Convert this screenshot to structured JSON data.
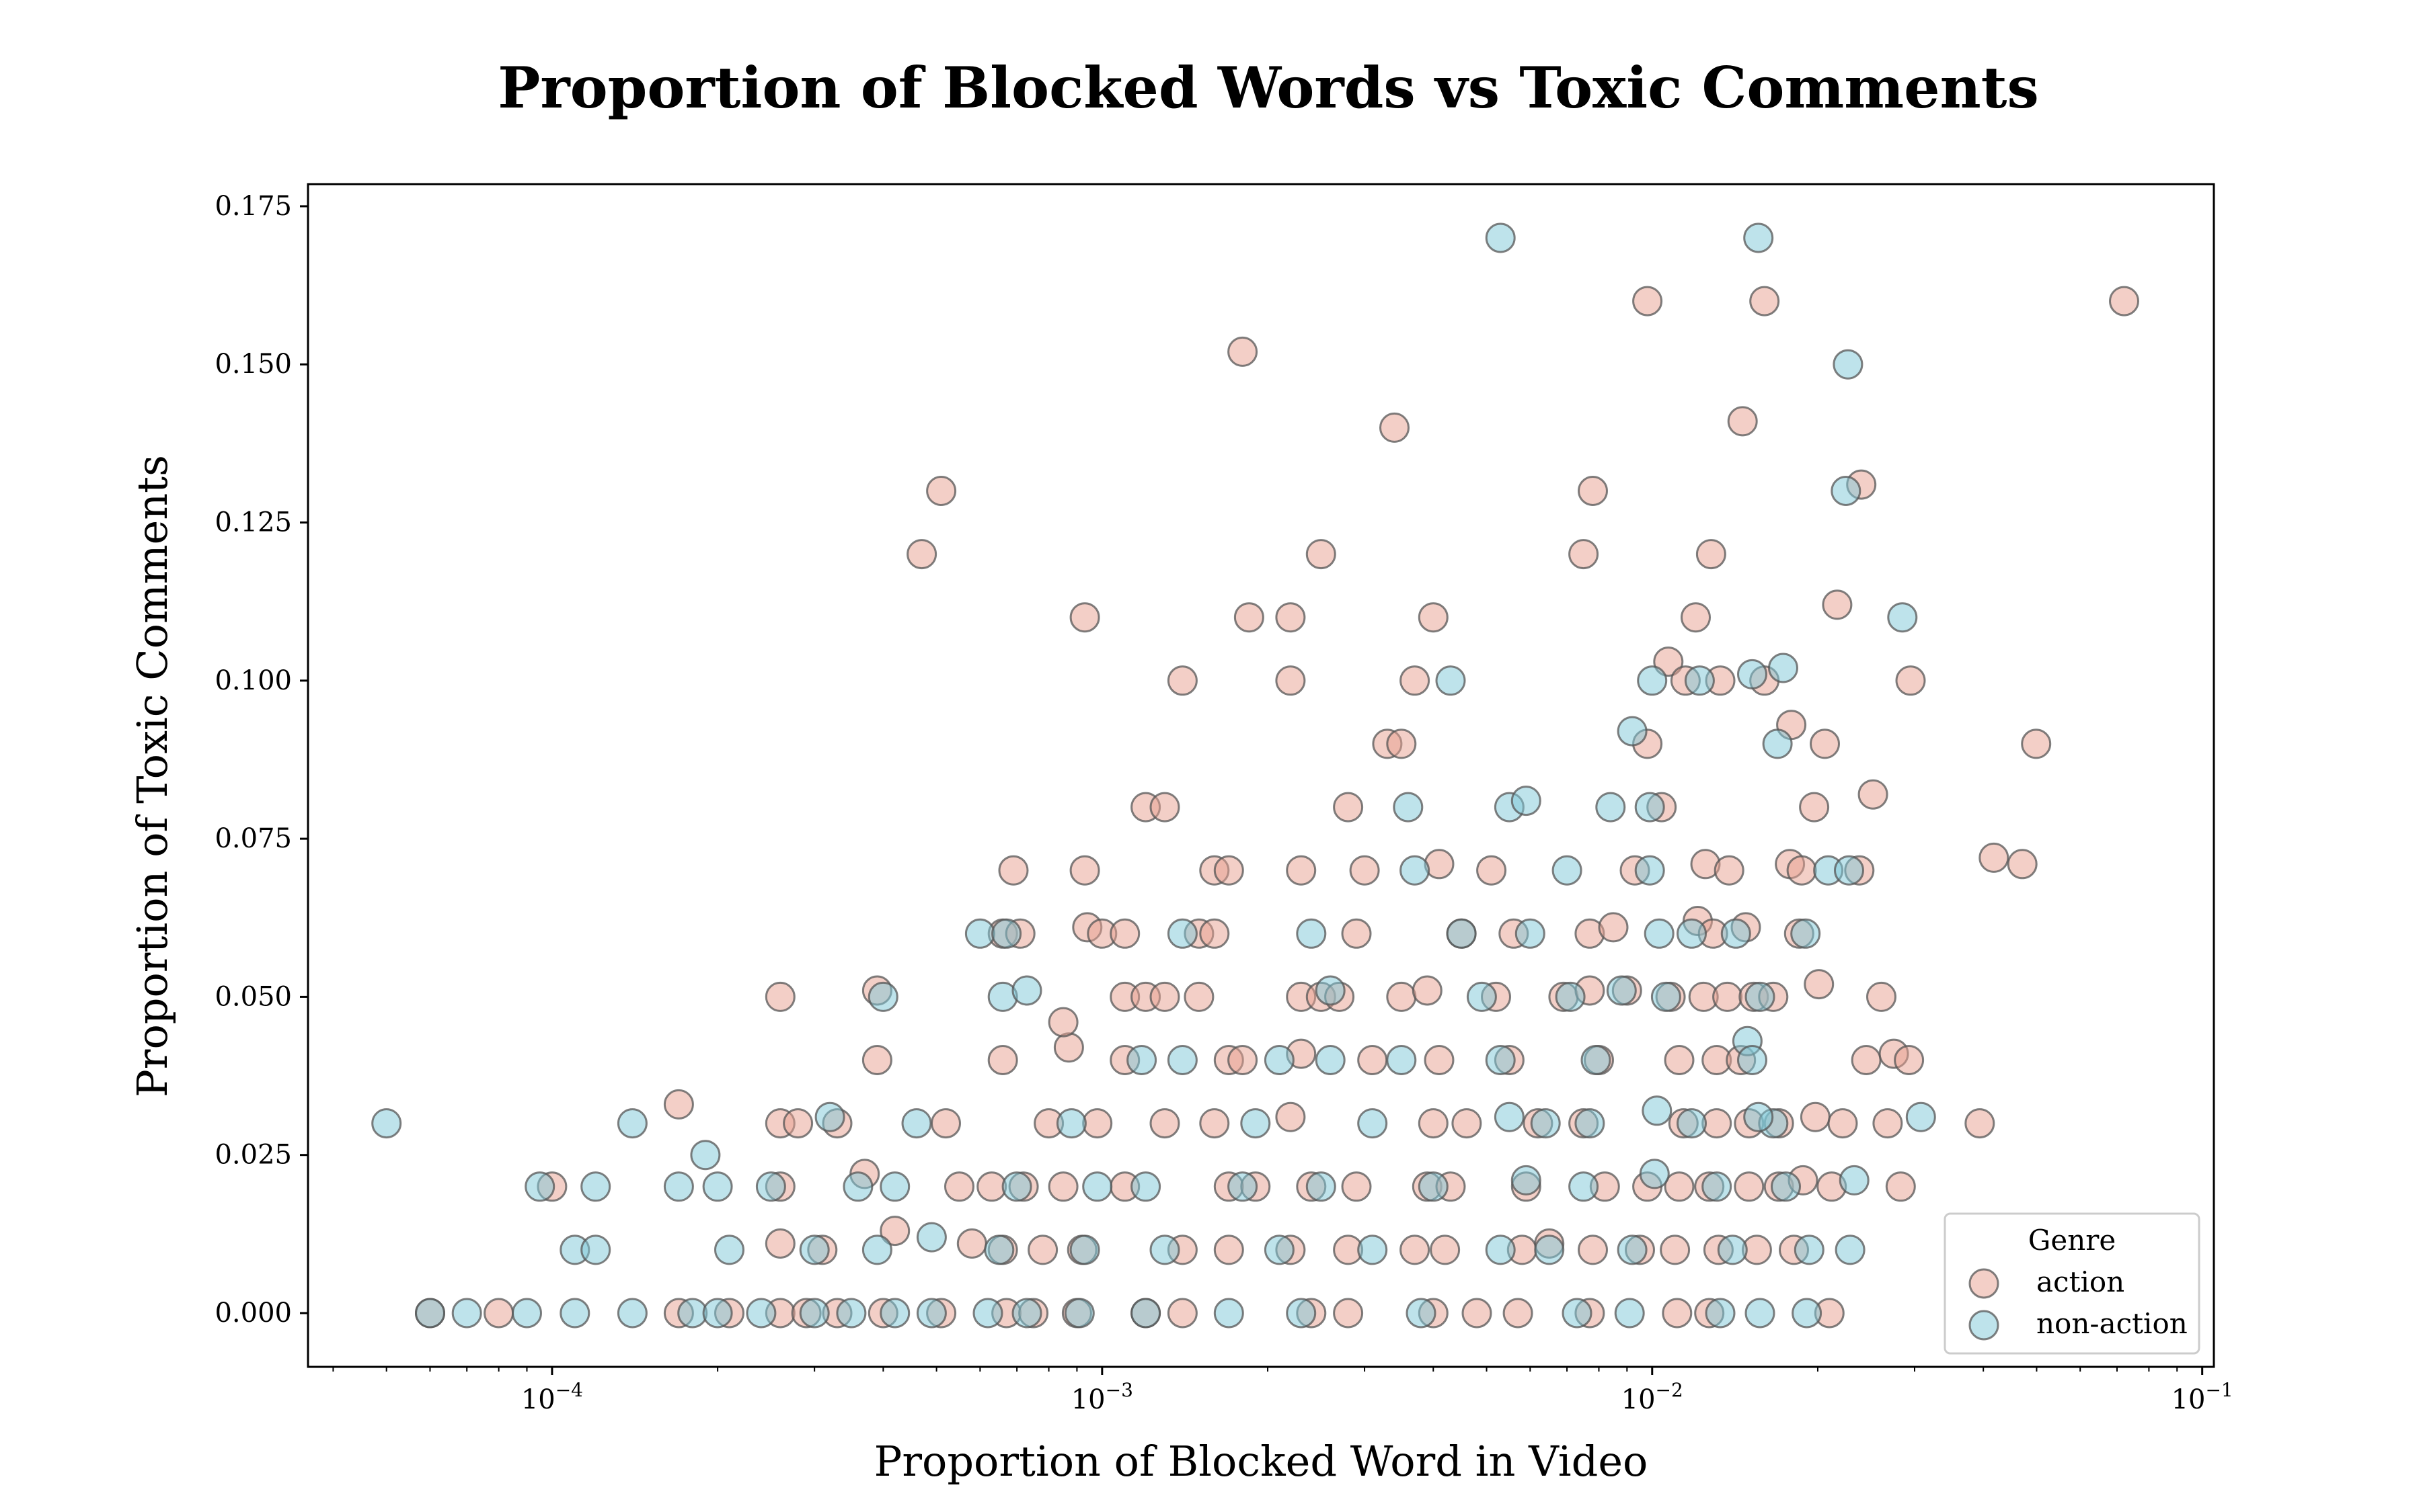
{
  "chart_data": {
    "type": "scatter",
    "title": "Proportion of Blocked Words vs Toxic Comments",
    "xlabel": "Proportion of Blocked Word in Video",
    "ylabel": "Proportion of Toxic Comments",
    "x_scale": "log",
    "xlim": [
      3.6e-05,
      0.105
    ],
    "ylim": [
      -0.0085,
      0.1785
    ],
    "x_ticks": [
      {
        "value": 0.0001,
        "base": "10",
        "exp": "−4"
      },
      {
        "value": 0.001,
        "base": "10",
        "exp": "−3"
      },
      {
        "value": 0.01,
        "base": "10",
        "exp": "−2"
      },
      {
        "value": 0.1,
        "base": "10",
        "exp": "−1"
      }
    ],
    "y_ticks": [
      {
        "value": 0,
        "label": "0.000"
      },
      {
        "value": 0.025,
        "label": "0.025"
      },
      {
        "value": 0.05,
        "label": "0.050"
      },
      {
        "value": 0.075,
        "label": "0.075"
      },
      {
        "value": 0.1,
        "label": "0.100"
      },
      {
        "value": 0.125,
        "label": "0.125"
      },
      {
        "value": 0.15,
        "label": "0.150"
      },
      {
        "value": 0.175,
        "label": "0.175"
      }
    ],
    "grid": false,
    "legend": {
      "title": "Genre",
      "position": "lower-right"
    },
    "colors": {
      "action": "#e8a090",
      "non-action": "#7ec8d8",
      "edge": "#555555"
    },
    "series": [
      {
        "name": "action",
        "x": [
          0.0721,
          0.0098,
          0.016,
          0.0018,
          0.0034,
          0.0146,
          0.024,
          0.0078,
          0.00051,
          0.00047,
          0.0025,
          0.0075,
          0.0128,
          0.0217,
          0.00093,
          0.00185,
          0.0022,
          0.004,
          0.012,
          0.0107,
          0.0014,
          0.0022,
          0.0037,
          0.0115,
          0.0133,
          0.016,
          0.0295,
          0.0179,
          0.0033,
          0.0035,
          0.0098,
          0.0206,
          0.0499,
          0.0252,
          0.0012,
          0.0013,
          0.0028,
          0.0104,
          0.0197,
          0.00069,
          0.00093,
          0.0016,
          0.0017,
          0.0023,
          0.003,
          0.0041,
          0.0051,
          0.0093,
          0.0125,
          0.0138,
          0.0178,
          0.0187,
          0.0238,
          0.0418,
          0.0471,
          0.00066,
          0.00071,
          0.00094,
          0.001,
          0.0011,
          0.0015,
          0.0016,
          0.0029,
          0.0045,
          0.0056,
          0.0077,
          0.0085,
          0.0121,
          0.0129,
          0.0148,
          0.0185,
          0.00026,
          0.00039,
          0.00087,
          0.0011,
          0.0012,
          0.0013,
          0.0015,
          0.0023,
          0.0025,
          0.0027,
          0.0035,
          0.0039,
          0.0052,
          0.0069,
          0.0077,
          0.009,
          0.0108,
          0.0124,
          0.0137,
          0.0153,
          0.0166,
          0.0201,
          0.0261,
          0.00039,
          0.00066,
          0.00085,
          0.0011,
          0.0017,
          0.0018,
          0.0023,
          0.0031,
          0.0041,
          0.0055,
          0.008,
          0.0112,
          0.0131,
          0.0145,
          0.0245,
          0.0275,
          0.0293,
          0.00017,
          0.00026,
          0.00028,
          0.00033,
          0.00052,
          0.0008,
          0.00098,
          0.0013,
          0.0016,
          0.0022,
          0.004,
          0.0046,
          0.0062,
          0.0075,
          0.0114,
          0.0131,
          0.015,
          0.017,
          0.0198,
          0.0222,
          0.0268,
          0.0394,
          0.0001,
          0.00026,
          0.00037,
          0.00055,
          0.00063,
          0.00072,
          0.00085,
          0.0011,
          0.0017,
          0.0019,
          0.0024,
          0.0029,
          0.0039,
          0.0043,
          0.0059,
          0.0082,
          0.0098,
          0.0112,
          0.0127,
          0.015,
          0.017,
          0.0188,
          0.0212,
          0.0283,
          0.00026,
          0.00031,
          0.00042,
          0.00058,
          0.00066,
          0.00078,
          0.00092,
          0.0014,
          0.0017,
          0.0022,
          0.0028,
          0.0037,
          0.0042,
          0.0058,
          0.0065,
          0.0078,
          0.0095,
          0.011,
          0.0132,
          0.0155,
          0.0181,
          6e-05,
          8e-05,
          0.00017,
          0.00021,
          0.00026,
          0.00029,
          0.00033,
          0.0004,
          0.00051,
          0.00067,
          0.00075,
          0.0009,
          0.0012,
          0.0014,
          0.0024,
          0.0028,
          0.004,
          0.0048,
          0.0057,
          0.0077,
          0.0111,
          0.0127,
          0.021
        ],
        "y": [
          0.16,
          0.16,
          0.16,
          0.152,
          0.14,
          0.141,
          0.131,
          0.13,
          0.13,
          0.12,
          0.12,
          0.12,
          0.12,
          0.112,
          0.11,
          0.11,
          0.11,
          0.11,
          0.11,
          0.103,
          0.1,
          0.1,
          0.1,
          0.1,
          0.1,
          0.1,
          0.1,
          0.093,
          0.09,
          0.09,
          0.09,
          0.09,
          0.09,
          0.082,
          0.08,
          0.08,
          0.08,
          0.08,
          0.08,
          0.07,
          0.07,
          0.07,
          0.07,
          0.07,
          0.07,
          0.071,
          0.07,
          0.07,
          0.071,
          0.07,
          0.071,
          0.07,
          0.07,
          0.072,
          0.071,
          0.06,
          0.06,
          0.061,
          0.06,
          0.06,
          0.06,
          0.06,
          0.06,
          0.06,
          0.06,
          0.06,
          0.061,
          0.062,
          0.06,
          0.061,
          0.06,
          0.05,
          0.051,
          0.042,
          0.05,
          0.05,
          0.05,
          0.05,
          0.05,
          0.05,
          0.05,
          0.05,
          0.051,
          0.05,
          0.05,
          0.051,
          0.051,
          0.05,
          0.05,
          0.05,
          0.05,
          0.05,
          0.052,
          0.05,
          0.04,
          0.04,
          0.046,
          0.04,
          0.04,
          0.04,
          0.041,
          0.04,
          0.04,
          0.04,
          0.04,
          0.04,
          0.04,
          0.04,
          0.04,
          0.041,
          0.04,
          0.033,
          0.03,
          0.03,
          0.03,
          0.03,
          0.03,
          0.03,
          0.03,
          0.03,
          0.031,
          0.03,
          0.03,
          0.03,
          0.03,
          0.03,
          0.03,
          0.03,
          0.03,
          0.031,
          0.03,
          0.03,
          0.03,
          0.02,
          0.02,
          0.022,
          0.02,
          0.02,
          0.02,
          0.02,
          0.02,
          0.02,
          0.02,
          0.02,
          0.02,
          0.02,
          0.02,
          0.02,
          0.02,
          0.02,
          0.02,
          0.02,
          0.02,
          0.02,
          0.021,
          0.02,
          0.02,
          0.011,
          0.01,
          0.013,
          0.011,
          0.01,
          0.01,
          0.01,
          0.01,
          0.01,
          0.01,
          0.01,
          0.01,
          0.01,
          0.01,
          0.011,
          0.01,
          0.01,
          0.01,
          0.01,
          0.01,
          0.01,
          0.0,
          0.0,
          0.0,
          0.0,
          0.0,
          0.0,
          0.0,
          0.0,
          0.0,
          0.0,
          0.0,
          0.0,
          0.0,
          0.0,
          0.0,
          0.0,
          0.0,
          0.0,
          0.0,
          0.0,
          0.0,
          0.0,
          0.0
        ]
      },
      {
        "name": "non-action",
        "x": [
          0.0053,
          0.0156,
          0.0227,
          0.0225,
          0.0285,
          0.0152,
          0.0173,
          0.0043,
          0.01,
          0.0122,
          0.0092,
          0.0169,
          0.0055,
          0.0059,
          0.0036,
          0.0084,
          0.0099,
          0.0209,
          0.0037,
          0.007,
          0.0099,
          0.0228,
          0.0006,
          0.00067,
          0.0014,
          0.0024,
          0.0045,
          0.006,
          0.0103,
          0.0118,
          0.0142,
          0.019,
          0.0004,
          0.00066,
          0.00073,
          0.0026,
          0.0049,
          0.0071,
          0.0088,
          0.0106,
          0.0157,
          0.0149,
          0.00118,
          0.0014,
          0.0021,
          0.0026,
          0.0035,
          0.0053,
          0.0079,
          0.0152,
          0.0166,
          5e-05,
          0.00014,
          0.00032,
          0.00046,
          0.00088,
          0.0019,
          0.0031,
          0.0055,
          0.0064,
          0.0077,
          0.0102,
          0.0118,
          0.0156,
          0.0308,
          0.00019,
          9.5e-05,
          0.00012,
          0.00017,
          0.0002,
          0.00025,
          0.00036,
          0.00042,
          0.0007,
          0.00098,
          0.0012,
          0.0018,
          0.0025,
          0.004,
          0.0059,
          0.0075,
          0.0101,
          0.0131,
          0.0175,
          0.0233,
          0.00011,
          0.00012,
          0.00021,
          0.0003,
          0.00039,
          0.00049,
          0.00065,
          0.00093,
          0.0013,
          0.0021,
          0.0031,
          0.0053,
          0.0065,
          0.0092,
          0.014,
          0.0193,
          0.0229,
          6e-05,
          7e-05,
          9e-05,
          0.00011,
          0.00014,
          0.00018,
          0.0002,
          0.00024,
          0.0003,
          0.00035,
          0.00042,
          0.00049,
          0.00062,
          0.00073,
          0.00091,
          0.0012,
          0.0017,
          0.0023,
          0.0038,
          0.0073,
          0.0091,
          0.0133,
          0.0157,
          0.0191
        ],
        "y": [
          0.17,
          0.17,
          0.15,
          0.13,
          0.11,
          0.101,
          0.102,
          0.1,
          0.1,
          0.1,
          0.092,
          0.09,
          0.08,
          0.081,
          0.08,
          0.08,
          0.08,
          0.07,
          0.07,
          0.07,
          0.07,
          0.07,
          0.06,
          0.06,
          0.06,
          0.06,
          0.06,
          0.06,
          0.06,
          0.06,
          0.06,
          0.06,
          0.05,
          0.05,
          0.051,
          0.051,
          0.05,
          0.05,
          0.051,
          0.05,
          0.05,
          0.043,
          0.04,
          0.04,
          0.04,
          0.04,
          0.04,
          0.04,
          0.04,
          0.04,
          0.03,
          0.03,
          0.03,
          0.031,
          0.03,
          0.03,
          0.03,
          0.03,
          0.031,
          0.03,
          0.03,
          0.032,
          0.03,
          0.031,
          0.031,
          0.025,
          0.02,
          0.02,
          0.02,
          0.02,
          0.02,
          0.02,
          0.02,
          0.02,
          0.02,
          0.02,
          0.02,
          0.02,
          0.02,
          0.021,
          0.02,
          0.022,
          0.02,
          0.02,
          0.021,
          0.01,
          0.01,
          0.01,
          0.01,
          0.01,
          0.012,
          0.01,
          0.01,
          0.01,
          0.01,
          0.01,
          0.01,
          0.01,
          0.01,
          0.01,
          0.01,
          0.01,
          0.0,
          0.0,
          0.0,
          0.0,
          0.0,
          0.0,
          0.0,
          0.0,
          0.0,
          0.0,
          0.0,
          0.0,
          0.0,
          0.0,
          0.0,
          0.0,
          0.0,
          0.0,
          0.0,
          0.0,
          0.0,
          0.0,
          0.0,
          0.0
        ]
      }
    ]
  }
}
